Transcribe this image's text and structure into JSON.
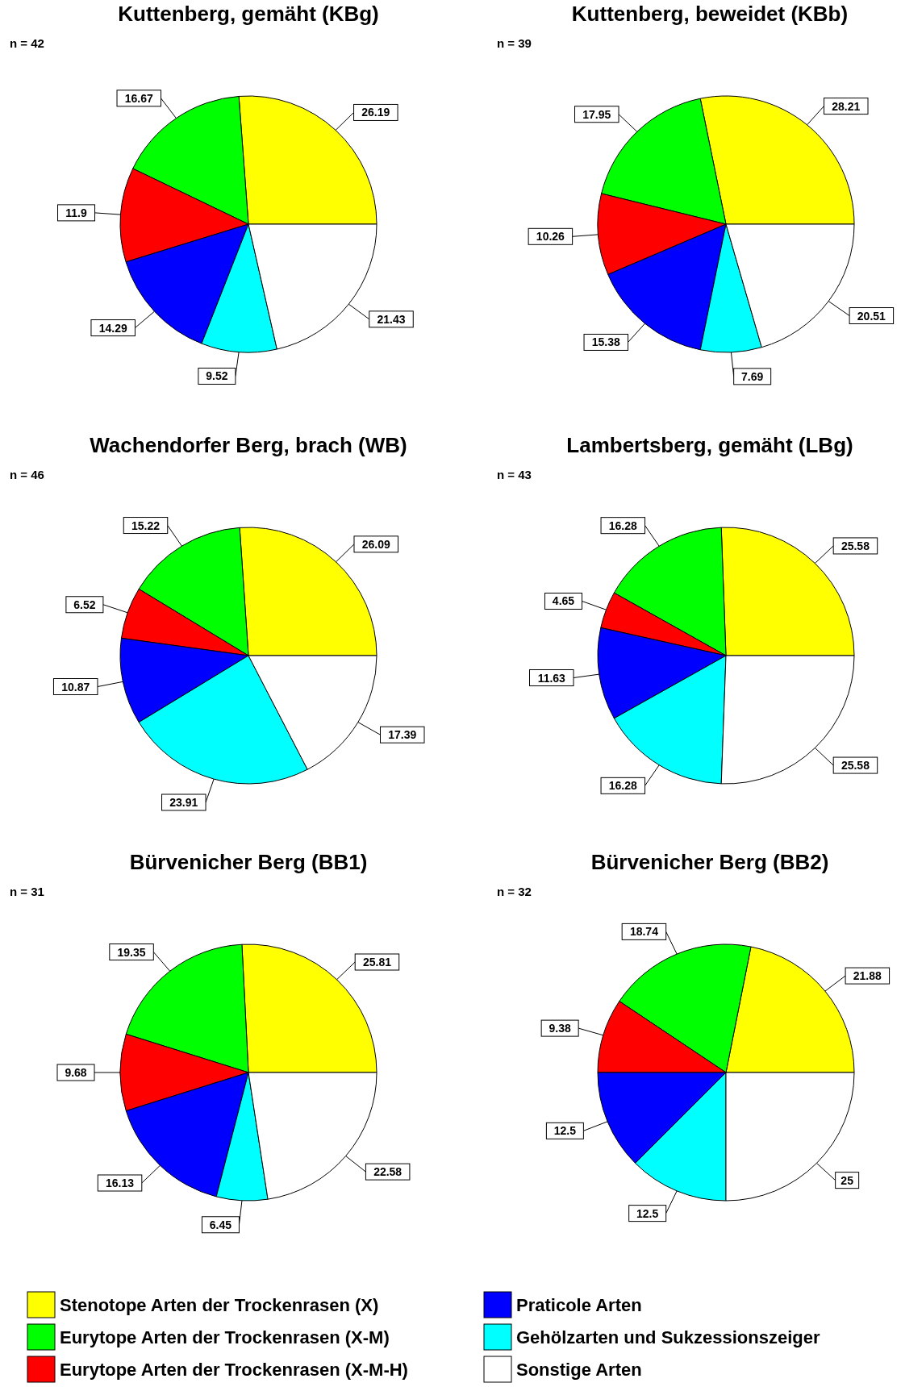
{
  "chart_data": [
    {
      "type": "pie",
      "title": "Kuttenberg, gemäht (KBg)",
      "annotations": [
        "n = 42"
      ],
      "categories": [
        "Stenotope Arten der Trockenrasen (X)",
        "Eurytope Arten der Trockenrasen (X-M)",
        "Eurytope Arten der Trockenrasen (X-M-H)",
        "Praticole Arten",
        "Gehölzarten und Sukzessionszeiger",
        "Sonstige Arten"
      ],
      "values": [
        26.19,
        16.67,
        11.9,
        14.29,
        9.52,
        21.43
      ],
      "colors": [
        "#ffff00",
        "#00ff00",
        "#ff0000",
        "#0000ff",
        "#00ffff",
        "#ffffff"
      ],
      "data_labels": true,
      "legend": "bottom"
    },
    {
      "type": "pie",
      "title": "Kuttenberg, beweidet (KBb)",
      "annotations": [
        "n = 39"
      ],
      "values": [
        28.21,
        17.95,
        10.26,
        15.38,
        7.69,
        20.51
      ],
      "colors": [
        "#ffff00",
        "#00ff00",
        "#ff0000",
        "#0000ff",
        "#00ffff",
        "#ffffff"
      ],
      "data_labels": true
    },
    {
      "type": "pie",
      "title": "Wachendorfer Berg, brach (WB)",
      "annotations": [
        "n = 46"
      ],
      "values": [
        26.09,
        15.22,
        6.52,
        10.87,
        23.91,
        17.39
      ],
      "colors": [
        "#ffff00",
        "#00ff00",
        "#ff0000",
        "#0000ff",
        "#00ffff",
        "#ffffff"
      ],
      "data_labels": true
    },
    {
      "type": "pie",
      "title": "Lambertsberg, gemäht (LBg)",
      "annotations": [
        "n = 43"
      ],
      "values": [
        25.58,
        16.28,
        4.65,
        11.63,
        16.28,
        25.58
      ],
      "colors": [
        "#ffff00",
        "#00ff00",
        "#ff0000",
        "#0000ff",
        "#00ffff",
        "#ffffff"
      ],
      "data_labels": true
    },
    {
      "type": "pie",
      "title": "Bürvenicher Berg (BB1)",
      "annotations": [
        "n = 31"
      ],
      "values": [
        25.81,
        19.35,
        9.68,
        16.13,
        6.45,
        22.58
      ],
      "colors": [
        "#ffff00",
        "#00ff00",
        "#ff0000",
        "#0000ff",
        "#00ffff",
        "#ffffff"
      ],
      "data_labels": true
    },
    {
      "type": "pie",
      "title": "Bürvenicher Berg (BB2)",
      "annotations": [
        "n = 32"
      ],
      "values": [
        21.88,
        18.74,
        9.38,
        12.5,
        12.5,
        25
      ],
      "colors": [
        "#ffff00",
        "#00ff00",
        "#ff0000",
        "#0000ff",
        "#00ffff",
        "#ffffff"
      ],
      "data_labels": true
    }
  ]
}
